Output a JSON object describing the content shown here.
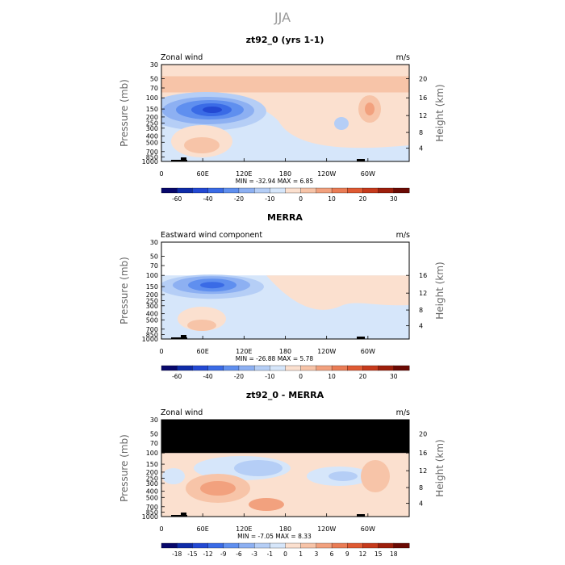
{
  "figure": {
    "title": "JJA"
  },
  "chart_data": [
    {
      "type": "heatmap",
      "title": "zt92_0 (yrs 1-1)",
      "corner_label": "Zonal wind",
      "units": "m/s",
      "ylabel": "Pressure (mb)",
      "ylabel_right": "Height (km)",
      "y_ticks": [
        "30",
        "50",
        "70",
        "100",
        "150",
        "200",
        "250",
        "300",
        "400",
        "500",
        "700",
        "850",
        "1000"
      ],
      "y_right_ticks": [
        "20",
        "16",
        "12",
        "8",
        "4"
      ],
      "x_ticks": [
        "0",
        "60E",
        "120E",
        "180",
        "120W",
        "60W"
      ],
      "stats": "MIN = -32.94   MAX =   6.85",
      "colorbar": {
        "labels": [
          "-60",
          "-40",
          "-20",
          "-10",
          "0",
          "10",
          "20",
          "30"
        ],
        "colors": [
          "#08086b",
          "#0f2ca8",
          "#2349d3",
          "#3a6be6",
          "#5f8fef",
          "#8db0f2",
          "#b5cef6",
          "#d6e6fa",
          "#fbe0cf",
          "#f7c4a8",
          "#f2a17e",
          "#ea7c55",
          "#df5a33",
          "#c63a1c",
          "#9d1f0c",
          "#6b0a04"
        ]
      },
      "data_top_pressure_mb": 30
    },
    {
      "type": "heatmap",
      "title": "MERRA",
      "corner_label": "Eastward wind component",
      "units": "m/s",
      "ylabel": "Pressure (mb)",
      "ylabel_right": "Height (km)",
      "y_ticks": [
        "30",
        "50",
        "70",
        "100",
        "150",
        "200",
        "250",
        "300",
        "400",
        "500",
        "700",
        "850",
        "1000"
      ],
      "y_right_ticks": [
        "16",
        "12",
        "8",
        "4"
      ],
      "x_ticks": [
        "0",
        "60E",
        "120E",
        "180",
        "120W",
        "60W"
      ],
      "stats": "MIN = -26.88   MAX =   5.78",
      "colorbar": {
        "labels": [
          "-60",
          "-40",
          "-20",
          "-10",
          "0",
          "10",
          "20",
          "30"
        ],
        "colors": [
          "#08086b",
          "#0f2ca8",
          "#2349d3",
          "#3a6be6",
          "#5f8fef",
          "#8db0f2",
          "#b5cef6",
          "#d6e6fa",
          "#fbe0cf",
          "#f7c4a8",
          "#f2a17e",
          "#ea7c55",
          "#df5a33",
          "#c63a1c",
          "#9d1f0c",
          "#6b0a04"
        ]
      },
      "data_top_pressure_mb": 100
    },
    {
      "type": "heatmap",
      "title": "zt92_0 - MERRA",
      "corner_label": "Zonal wind",
      "units": "m/s",
      "ylabel": "Pressure (mb)",
      "ylabel_right": "Height (km)",
      "y_ticks": [
        "30",
        "50",
        "70",
        "100",
        "150",
        "200",
        "250",
        "300",
        "400",
        "500",
        "700",
        "850",
        "1000"
      ],
      "y_right_ticks": [
        "20",
        "16",
        "12",
        "8",
        "4"
      ],
      "x_ticks": [
        "0",
        "60E",
        "120E",
        "180",
        "120W",
        "60W"
      ],
      "stats": "MIN =  -7.05   MAX =   8.33",
      "colorbar": {
        "labels": [
          "-18",
          "-15",
          "-12",
          "-9",
          "-6",
          "-3",
          "-1",
          "0",
          "1",
          "3",
          "6",
          "9",
          "12",
          "15",
          "18"
        ],
        "colors": [
          "#08086b",
          "#0f2ca8",
          "#2349d3",
          "#3a6be6",
          "#5f8fef",
          "#8db0f2",
          "#b5cef6",
          "#d6e6fa",
          "#fbe0cf",
          "#f7c4a8",
          "#f2a17e",
          "#ea7c55",
          "#df5a33",
          "#c63a1c",
          "#9d1f0c",
          "#6b0a04"
        ]
      },
      "data_top_pressure_mb": 100,
      "masked_region": "30-100 mb (no data)"
    }
  ]
}
